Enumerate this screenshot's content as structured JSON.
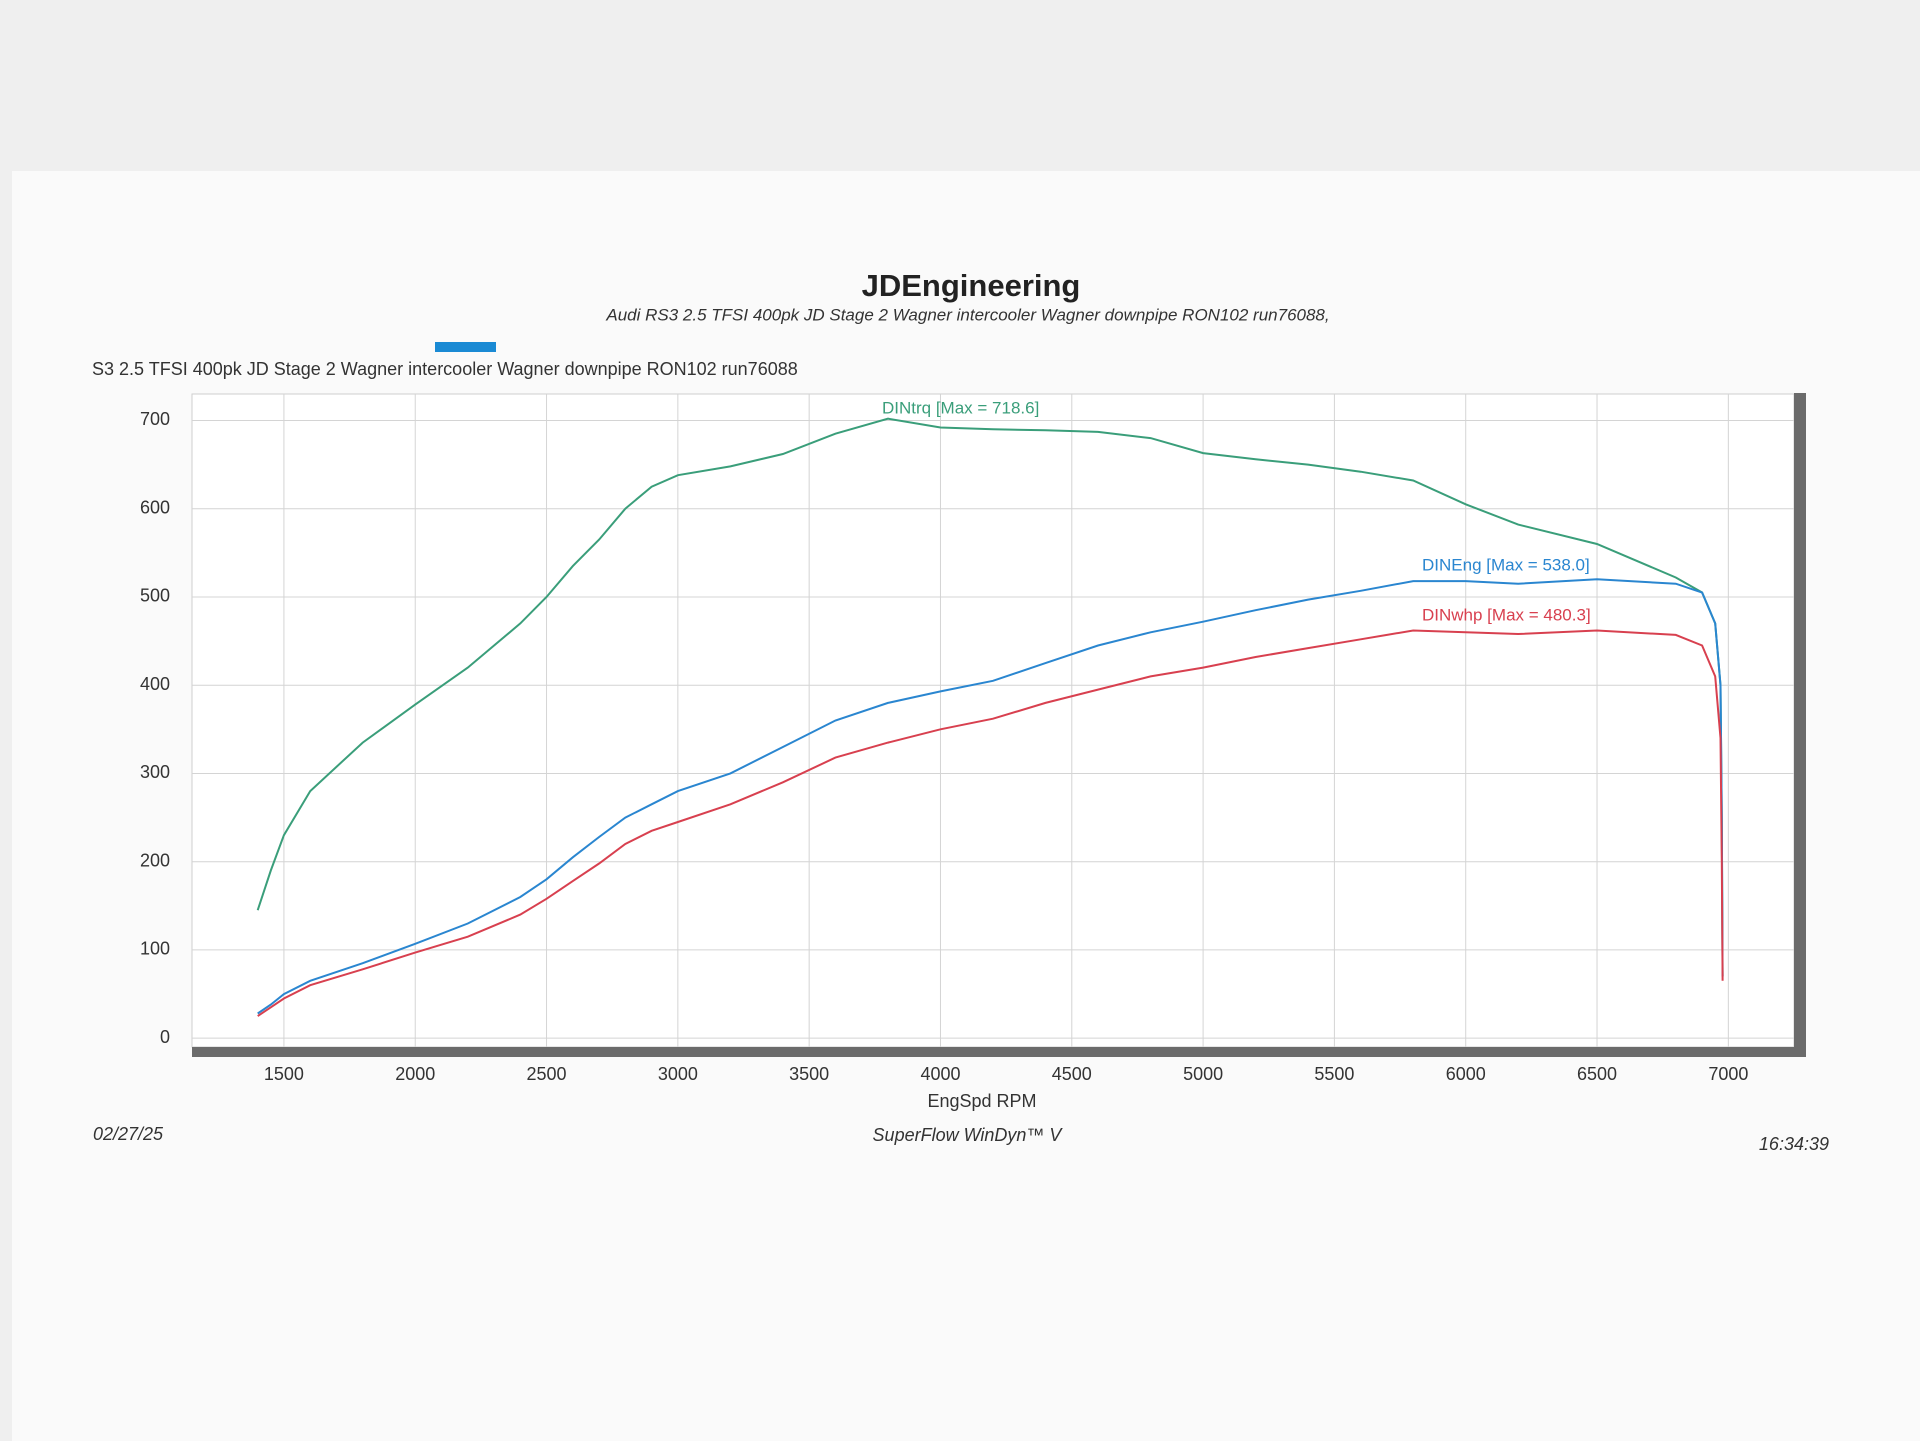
{
  "chart_data": {
    "type": "line",
    "title": "JDEngineering",
    "subtitle": "Audi RS3 2.5 TFSI 400pk   JD Stage 2  Wagner intercooler Wagner downpipe  RON102   run76088,",
    "run_label": "S3 2.5 TFSI 400pk   JD Stage 2  Wagner intercooler Wagner downpipe  RON102   run76088",
    "x_label": "EngSpd  RPM",
    "footer_left": "02/27/25",
    "footer_center": "SuperFlow WinDyn™ V",
    "footer_right": "16:34:39",
    "x": [
      1400,
      1450,
      1500,
      1600,
      1800,
      2000,
      2200,
      2400,
      2500,
      2600,
      2700,
      2800,
      2900,
      3000,
      3200,
      3400,
      3600,
      3800,
      4000,
      4200,
      4400,
      4600,
      4800,
      5000,
      5200,
      5400,
      5600,
      5800,
      6000,
      6200,
      6500,
      6800,
      6900,
      6950,
      6970,
      6975,
      6978
    ],
    "series": [
      {
        "name": "DINtrq [Max = 718.6]",
        "color": "#3a9e7a",
        "values": [
          145,
          190,
          230,
          280,
          335,
          378,
          420,
          470,
          500,
          535,
          565,
          600,
          625,
          638,
          648,
          662,
          685,
          702,
          692,
          690,
          689,
          687,
          680,
          663,
          656,
          650,
          642,
          632,
          605,
          582,
          560,
          522,
          505,
          470,
          400,
          250,
          70
        ]
      },
      {
        "name": "DINEng [Max = 538.0]",
        "color": "#2a86d0",
        "values": [
          28,
          38,
          50,
          65,
          85,
          107,
          130,
          160,
          180,
          205,
          228,
          250,
          265,
          280,
          300,
          330,
          360,
          380,
          393,
          405,
          425,
          445,
          460,
          472,
          485,
          497,
          507,
          518,
          518,
          515,
          520,
          515,
          505,
          470,
          400,
          250,
          70
        ]
      },
      {
        "name": "DINwhp [Max = 480.3]",
        "color": "#d8404f",
        "values": [
          25,
          35,
          45,
          60,
          78,
          97,
          115,
          140,
          158,
          178,
          198,
          220,
          235,
          245,
          265,
          290,
          318,
          335,
          350,
          362,
          380,
          395,
          410,
          420,
          432,
          442,
          452,
          462,
          460,
          458,
          462,
          457,
          445,
          410,
          340,
          200,
          65
        ]
      }
    ],
    "xlim": [
      1150,
      7250
    ],
    "ylim": [
      -10,
      730
    ],
    "xticks": [
      1500,
      2000,
      2500,
      3000,
      3500,
      4000,
      4500,
      5000,
      5500,
      6000,
      6500,
      7000
    ],
    "yticks": [
      0,
      100,
      200,
      300,
      400,
      500,
      600,
      700
    ],
    "grid": true
  }
}
